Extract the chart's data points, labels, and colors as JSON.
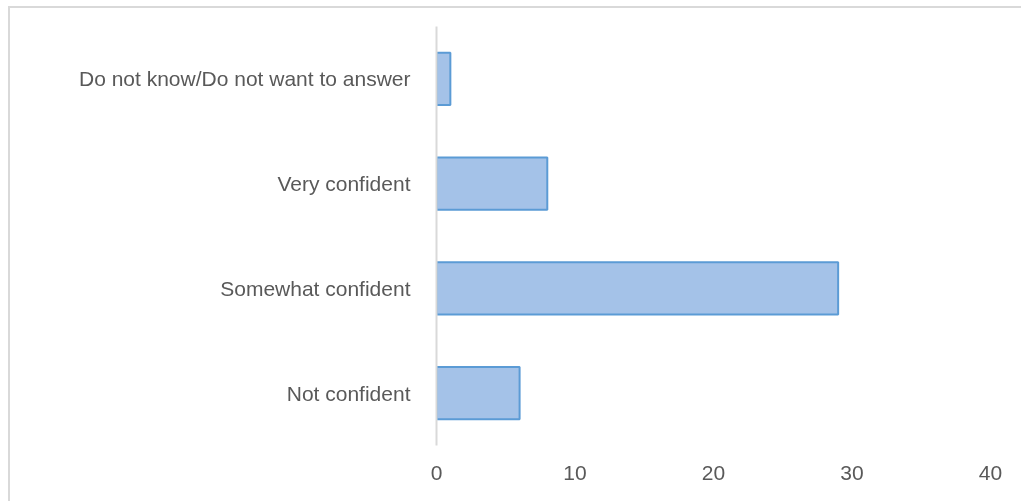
{
  "chart_data": {
    "type": "bar",
    "orientation": "horizontal",
    "categories": [
      "Do not know/Do not want to answer",
      "Very confident",
      "Somewhat confident",
      "Not confident"
    ],
    "values": [
      1,
      8,
      29,
      6
    ],
    "color": "#a4c2e8",
    "xlim": [
      0,
      40
    ],
    "xticks": [
      0,
      10,
      20,
      30,
      40
    ],
    "grid": false
  }
}
